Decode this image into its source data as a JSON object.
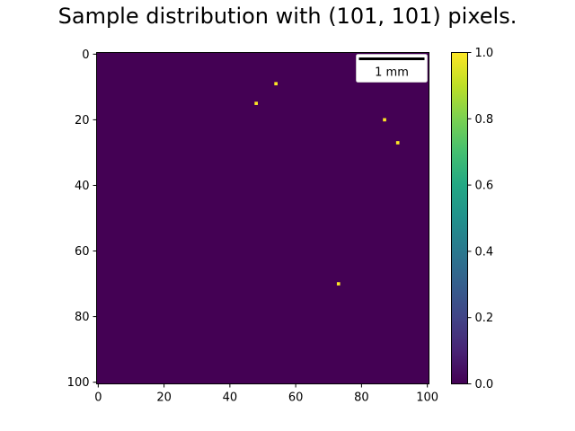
{
  "chart_data": {
    "type": "heatmap",
    "title": "Sample distribution with (101, 101) pixels.",
    "grid_size": [
      101,
      101
    ],
    "background_value": 0.0,
    "points": [
      {
        "x": 54,
        "y": 9,
        "value": 1.0
      },
      {
        "x": 48,
        "y": 15,
        "value": 1.0
      },
      {
        "x": 87,
        "y": 20,
        "value": 1.0
      },
      {
        "x": 91,
        "y": 27,
        "value": 1.0
      },
      {
        "x": 73,
        "y": 70,
        "value": 1.0
      }
    ],
    "xlim": [
      0,
      100
    ],
    "ylim": [
      100,
      0
    ],
    "x_ticks": [
      0,
      20,
      40,
      60,
      80,
      100
    ],
    "y_ticks": [
      0,
      20,
      40,
      60,
      80,
      100
    ],
    "grid": false,
    "colormap": "viridis",
    "colorbar": {
      "range": [
        0.0,
        1.0
      ],
      "ticks": [
        "0.0",
        "0.2",
        "0.4",
        "0.6",
        "0.8",
        "1.0"
      ],
      "low_color": "#440154",
      "high_color": "#fde725"
    },
    "scalebar": {
      "label": "1 mm",
      "placement": "top-right"
    }
  }
}
